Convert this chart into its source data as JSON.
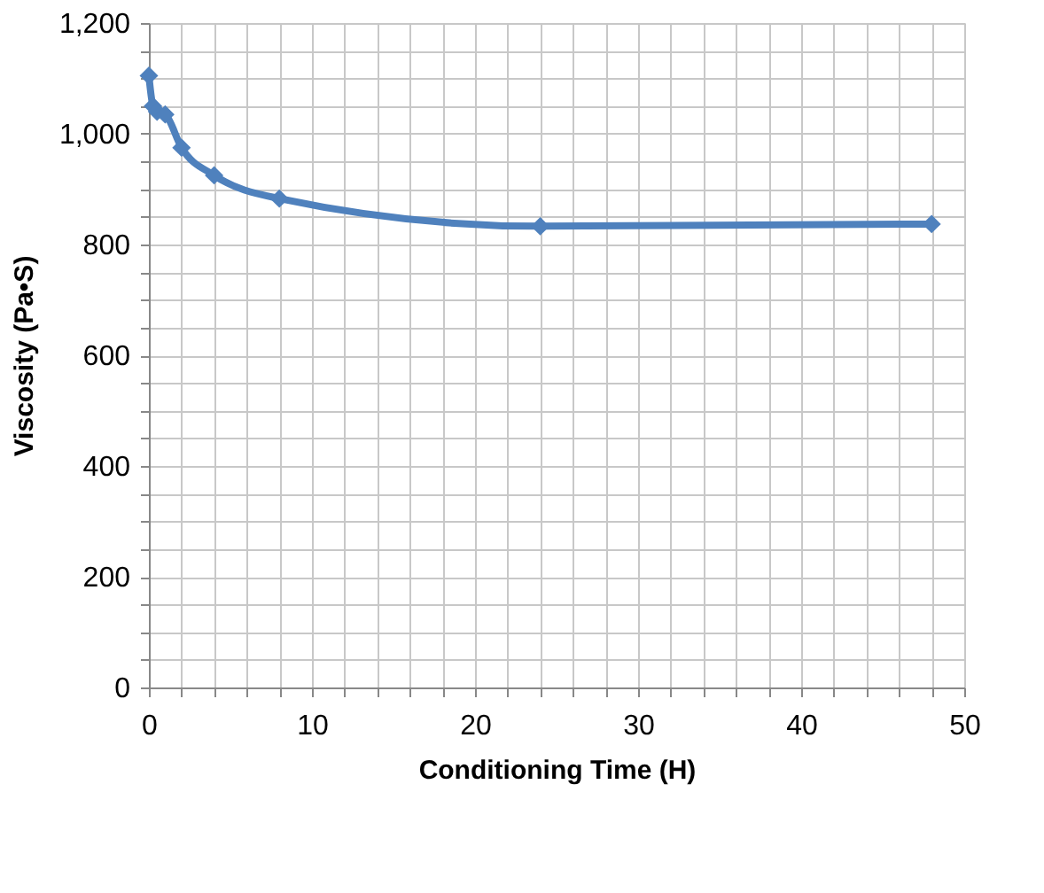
{
  "chart_data": {
    "type": "line",
    "xlabel": "Conditioning Time (H)",
    "ylabel": "Viscosity  (Pa•S)",
    "x": [
      0,
      0.25,
      0.5,
      1,
      2,
      4,
      8,
      24,
      48
    ],
    "series": [
      {
        "color": "#4f81bd",
        "values": [
          1105,
          1050,
          1040,
          1035,
          975,
          925,
          883,
          833,
          837
        ]
      }
    ],
    "marker": "diamond",
    "line_style": "solid",
    "grid": true,
    "legend": false,
    "xlim": [
      0,
      50
    ],
    "ylim": [
      0,
      1200
    ],
    "xticks": [
      0,
      {
        "value": 2,
        "label": null
      },
      {
        "value": 4,
        "label": null
      },
      {
        "value": 6,
        "label": null
      },
      {
        "value": 8,
        "label": null
      },
      10,
      {
        "value": 12,
        "label": null
      },
      {
        "value": 14,
        "label": null
      },
      {
        "value": 16,
        "label": null
      },
      {
        "value": 18,
        "label": null
      },
      20,
      {
        "value": 22,
        "label": null
      },
      {
        "value": 24,
        "label": null
      },
      {
        "value": 26,
        "label": null
      },
      {
        "value": 28,
        "label": null
      },
      30,
      {
        "value": 32,
        "label": null
      },
      {
        "value": 34,
        "label": null
      },
      {
        "value": 36,
        "label": null
      },
      {
        "value": 38,
        "label": null
      },
      40,
      {
        "value": 42,
        "label": null
      },
      {
        "value": 44,
        "label": null
      },
      {
        "value": 46,
        "label": null
      },
      {
        "value": 48,
        "label": null
      },
      50
    ],
    "yticks": [
      0,
      {
        "value": 50,
        "label": null
      },
      {
        "value": 100,
        "label": null
      },
      {
        "value": 150,
        "label": null
      },
      200,
      {
        "value": 250,
        "label": null
      },
      {
        "value": 300,
        "label": null
      },
      {
        "value": 350,
        "label": null
      },
      400,
      {
        "value": 450,
        "label": null
      },
      {
        "value": 500,
        "label": null
      },
      {
        "value": 550,
        "label": null
      },
      600,
      {
        "value": 650,
        "label": null
      },
      {
        "value": 700,
        "label": null
      },
      {
        "value": 750,
        "label": null
      },
      800,
      {
        "value": 850,
        "label": null
      },
      {
        "value": 900,
        "label": null
      },
      {
        "value": 950,
        "label": null
      },
      {
        "value": 1000,
        "label": "1,000"
      },
      {
        "value": 1050,
        "label": null
      },
      {
        "value": 1100,
        "label": null
      },
      {
        "value": 1150,
        "label": null
      },
      {
        "value": 1200,
        "label": "1,200"
      }
    ]
  }
}
